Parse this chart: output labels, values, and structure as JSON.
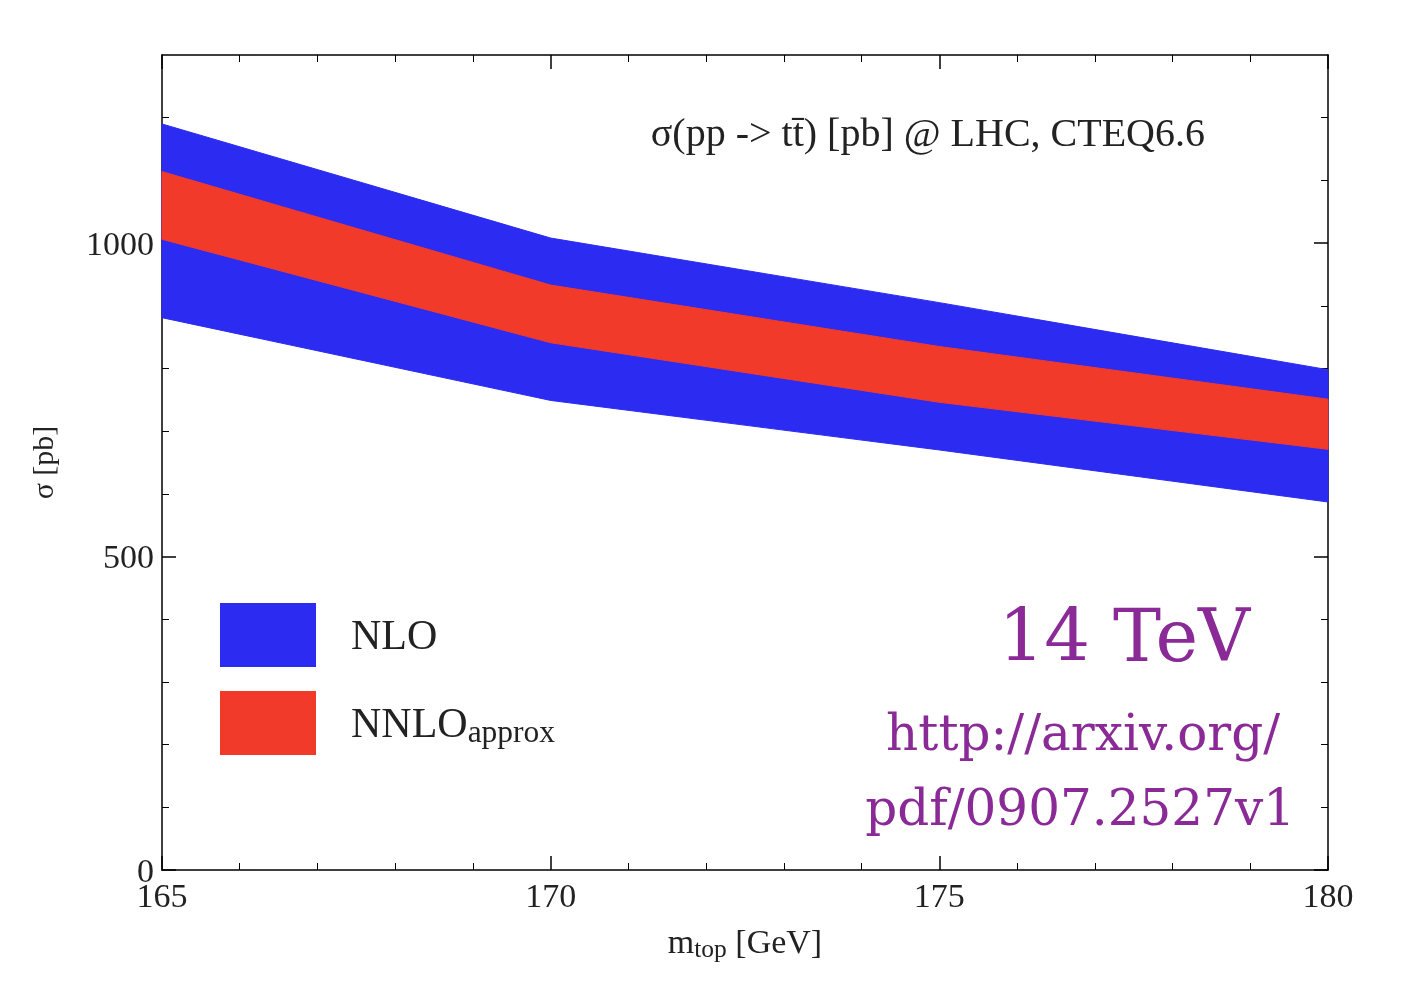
{
  "chart_data": {
    "type": "line",
    "xlabel": "m$_{top}$ [GeV]",
    "ylabel": "σ [pb]",
    "x": [
      165,
      170,
      175,
      180
    ],
    "series": [
      {
        "name": "NLO",
        "color": "#2b2bf2",
        "values": [
          null,
          null,
          null,
          null
        ],
        "lower": [
          881,
          749,
          670,
          587
        ],
        "upper": [
          1190,
          1008,
          905,
          798
        ]
      },
      {
        "name": "NNLO$_{approx}$",
        "color": "#f23a2b",
        "values": [
          null,
          null,
          null,
          null
        ],
        "lower": [
          1006,
          841,
          746,
          671
        ],
        "upper": [
          1114,
          933,
          835,
          751
        ]
      }
    ],
    "xlim": [
      165,
      180
    ],
    "xticks": [
      165,
      170,
      175,
      180
    ],
    "ylim": [
      0,
      1300
    ],
    "yticks": [
      0,
      500,
      1000
    ],
    "annotations": [
      "σ(pp -> tt̄) [pb] @ LHC, CTEQ6.6",
      "14 TeV",
      "http://arxiv.org/",
      "pdf/0907.2527v1"
    ],
    "legend": "bottom left",
    "grid": false
  }
}
